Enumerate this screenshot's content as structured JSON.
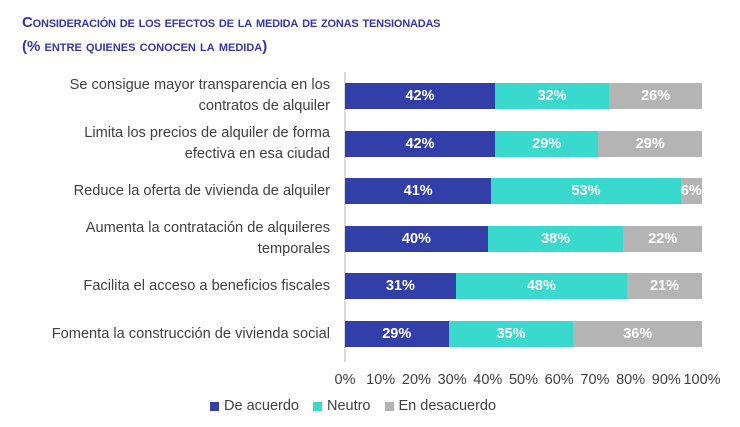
{
  "chart_data": {
    "type": "bar",
    "orientation": "horizontal",
    "stacked": true,
    "title": "Consideración de los efectos de la medida de zonas tensionadas",
    "subtitle": "(% entre quienes conocen la medida)",
    "categories": [
      [
        "Se consigue mayor transparencia en los",
        "contratos de alquiler"
      ],
      [
        "Limita los precios de alquiler de forma",
        "efectiva en esa ciudad"
      ],
      [
        "Reduce la oferta de vivienda de alquiler"
      ],
      [
        "Aumenta la contratación de alquileres",
        "temporales"
      ],
      [
        "Facilita el acceso a beneficios fiscales"
      ],
      [
        "Fomenta la construcción de vivienda social"
      ]
    ],
    "series": [
      {
        "name": "De acuerdo",
        "color": "#333fa8",
        "values": [
          42,
          42,
          41,
          40,
          31,
          29
        ]
      },
      {
        "name": "Neutro",
        "color": "#3ad9cd",
        "values": [
          32,
          29,
          53,
          38,
          48,
          35
        ]
      },
      {
        "name": "En desacuerdo",
        "color": "#b4b4b4",
        "values": [
          26,
          29,
          6,
          22,
          21,
          36
        ]
      }
    ],
    "xlim": [
      0,
      100
    ],
    "xticks": [
      "0%",
      "10%",
      "20%",
      "30%",
      "40%",
      "50%",
      "60%",
      "70%",
      "80%",
      "90%",
      "100%"
    ],
    "grid": false,
    "legend_position": "bottom",
    "data_label_suffix": "%"
  }
}
